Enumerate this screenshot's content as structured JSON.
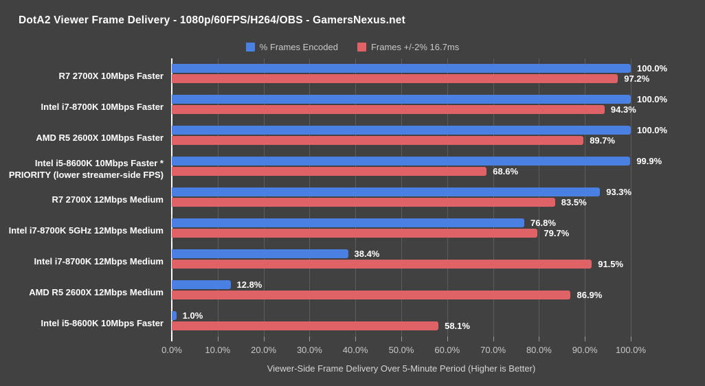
{
  "title": "DotA2 Viewer Frame Delivery - 1080p/60FPS/H264/OBS - GamersNexus.net",
  "colors": {
    "encoded": "#4a80e2",
    "delivered": "#df6266",
    "background": "#414141",
    "gridline": "#5d5d5d",
    "baseline": "#ffffff"
  },
  "legend": {
    "items": [
      {
        "label": "% Frames Encoded",
        "series": "encoded"
      },
      {
        "label": "Frames +/-2% 16.7ms",
        "series": "delivered"
      }
    ]
  },
  "chart_data": {
    "type": "bar",
    "orientation": "horizontal",
    "title": "DotA2 Viewer Frame Delivery - 1080p/60FPS/H264/OBS - GamersNexus.net",
    "xlabel": "Viewer-Side Frame Delivery Over 5-Minute Period (Higher is Better)",
    "ylabel": "",
    "xlim": [
      0,
      100
    ],
    "xticks": [
      0,
      10,
      20,
      30,
      40,
      50,
      60,
      70,
      80,
      90,
      100
    ],
    "xtick_format": "percent_one_decimal",
    "grid": true,
    "legend_position": "top-center",
    "categories": [
      "R7 2700X 10Mbps Faster",
      "Intel i7-8700K 10Mbps Faster",
      "AMD R5 2600X 10Mbps Faster",
      "Intel i5-8600K 10Mbps Faster *\nPRIORITY (lower streamer-side FPS)",
      "R7 2700X 12Mbps Medium",
      "Intel i7-8700K 5GHz 12Mbps Medium",
      "Intel i7-8700K 12Mbps Medium",
      "AMD R5 2600X 12Mbps Medium",
      "Intel i5-8600K 10Mbps Faster"
    ],
    "series": [
      {
        "name": "% Frames Encoded",
        "key": "encoded",
        "values": [
          100.0,
          100.0,
          100.0,
          99.9,
          93.3,
          76.8,
          38.4,
          12.8,
          1.0
        ]
      },
      {
        "name": "Frames +/-2% 16.7ms",
        "key": "delivered",
        "values": [
          97.2,
          94.3,
          89.7,
          68.6,
          83.5,
          79.7,
          91.5,
          86.9,
          58.1
        ]
      }
    ]
  }
}
